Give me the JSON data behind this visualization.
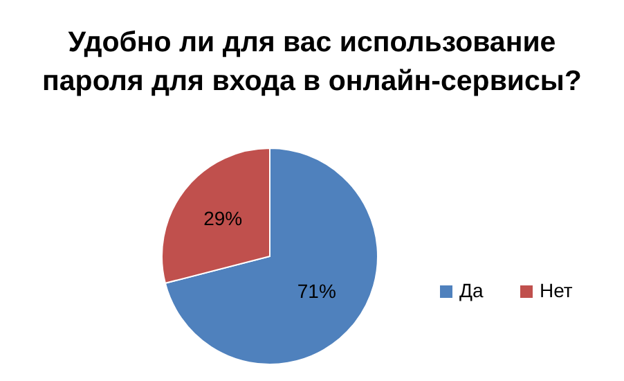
{
  "chart_data": {
    "type": "pie",
    "title": "Удобно ли для вас использование\nпароля для входа в онлайн-сервисы?",
    "categories": [
      "Да",
      "Нет"
    ],
    "values": [
      71,
      29
    ],
    "colors": [
      "#4f81bd",
      "#c0504d"
    ],
    "value_labels": [
      "71%",
      "29%"
    ],
    "legend": "right"
  }
}
